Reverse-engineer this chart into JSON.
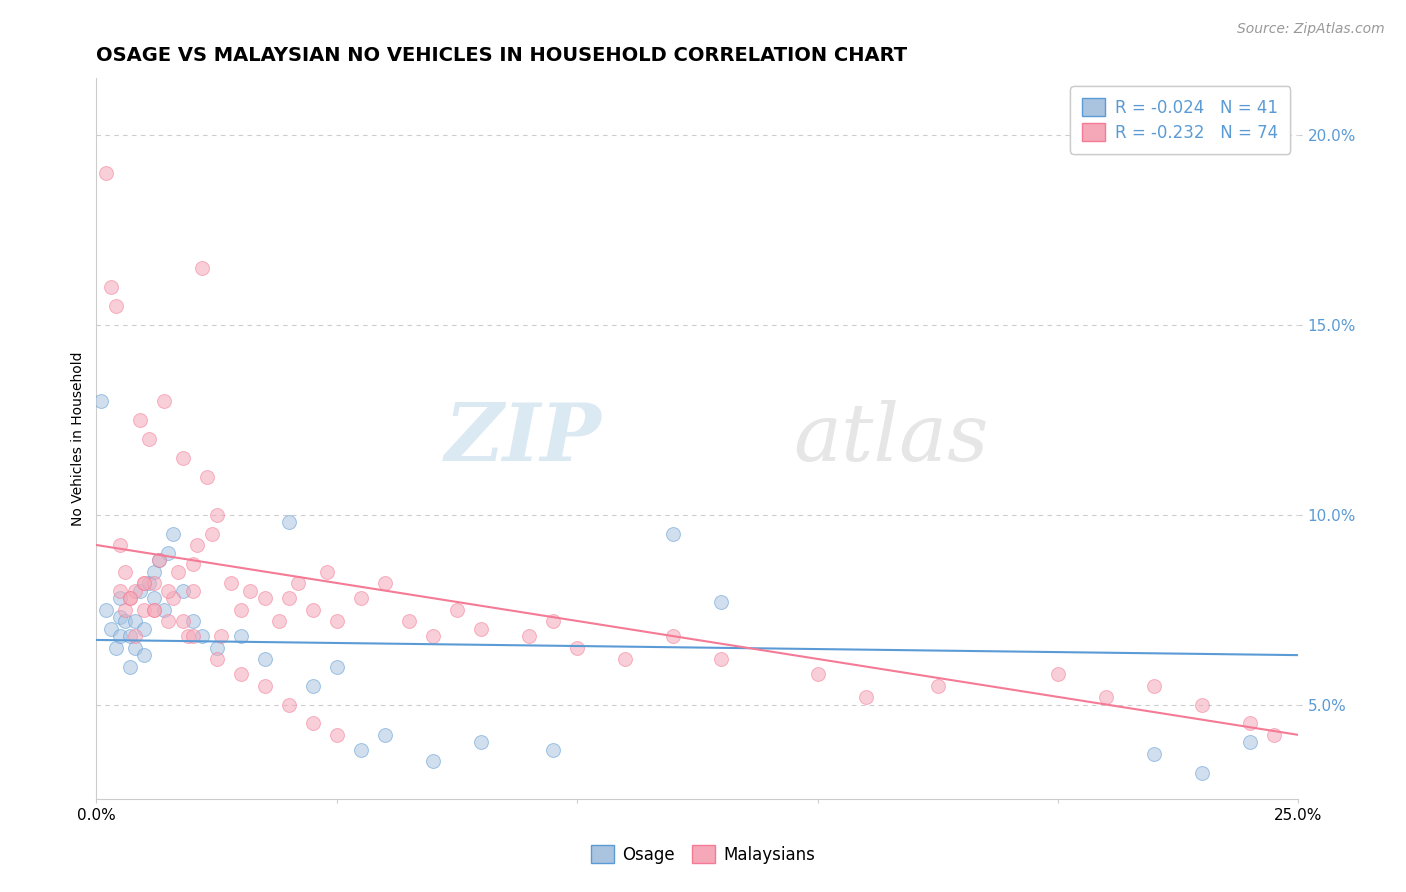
{
  "title": "OSAGE VS MALAYSIAN NO VEHICLES IN HOUSEHOLD CORRELATION CHART",
  "source": "Source: ZipAtlas.com",
  "ylabel": "No Vehicles in Household",
  "background_color": "#ffffff",
  "grid_color": "#cccccc",
  "osage_color": "#aac4e0",
  "malaysian_color": "#f4a8b8",
  "osage_line_color": "#5b9bd5",
  "malaysian_line_color": "#f47a95",
  "legend_r_osage": "R = -0.024",
  "legend_n_osage": "N = 41",
  "legend_r_malaysian": "R = -0.232",
  "legend_n_malaysian": "N = 74",
  "xlim": [
    0.0,
    0.25
  ],
  "ylim": [
    0.025,
    0.215
  ],
  "osage_trend": [
    0.0,
    0.25,
    0.067,
    0.063
  ],
  "malaysian_trend": [
    0.0,
    0.25,
    0.092,
    0.042
  ],
  "osage_x": [
    0.001,
    0.002,
    0.003,
    0.004,
    0.005,
    0.005,
    0.005,
    0.006,
    0.007,
    0.007,
    0.008,
    0.008,
    0.009,
    0.01,
    0.01,
    0.011,
    0.012,
    0.012,
    0.013,
    0.014,
    0.015,
    0.016,
    0.018,
    0.02,
    0.022,
    0.025,
    0.03,
    0.035,
    0.04,
    0.045,
    0.05,
    0.055,
    0.06,
    0.07,
    0.08,
    0.095,
    0.12,
    0.13,
    0.22,
    0.23,
    0.24
  ],
  "osage_y": [
    0.13,
    0.075,
    0.07,
    0.065,
    0.068,
    0.073,
    0.078,
    0.072,
    0.06,
    0.068,
    0.065,
    0.072,
    0.08,
    0.063,
    0.07,
    0.082,
    0.078,
    0.085,
    0.088,
    0.075,
    0.09,
    0.095,
    0.08,
    0.072,
    0.068,
    0.065,
    0.068,
    0.062,
    0.098,
    0.055,
    0.06,
    0.038,
    0.042,
    0.035,
    0.04,
    0.038,
    0.095,
    0.077,
    0.037,
    0.032,
    0.04
  ],
  "malaysian_x": [
    0.002,
    0.003,
    0.004,
    0.005,
    0.005,
    0.006,
    0.006,
    0.007,
    0.008,
    0.008,
    0.009,
    0.01,
    0.01,
    0.011,
    0.012,
    0.012,
    0.013,
    0.014,
    0.015,
    0.016,
    0.017,
    0.018,
    0.019,
    0.02,
    0.02,
    0.021,
    0.022,
    0.023,
    0.024,
    0.025,
    0.026,
    0.028,
    0.03,
    0.032,
    0.035,
    0.038,
    0.04,
    0.042,
    0.045,
    0.048,
    0.05,
    0.055,
    0.06,
    0.065,
    0.07,
    0.075,
    0.08,
    0.09,
    0.095,
    0.1,
    0.11,
    0.12,
    0.13,
    0.15,
    0.16,
    0.175,
    0.2,
    0.21,
    0.22,
    0.23,
    0.24,
    0.245,
    0.007,
    0.01,
    0.012,
    0.015,
    0.018,
    0.02,
    0.025,
    0.03,
    0.035,
    0.04,
    0.045,
    0.05
  ],
  "malaysian_y": [
    0.19,
    0.16,
    0.155,
    0.08,
    0.092,
    0.075,
    0.085,
    0.078,
    0.068,
    0.08,
    0.125,
    0.075,
    0.082,
    0.12,
    0.075,
    0.082,
    0.088,
    0.13,
    0.072,
    0.078,
    0.085,
    0.115,
    0.068,
    0.08,
    0.087,
    0.092,
    0.165,
    0.11,
    0.095,
    0.1,
    0.068,
    0.082,
    0.075,
    0.08,
    0.078,
    0.072,
    0.078,
    0.082,
    0.075,
    0.085,
    0.072,
    0.078,
    0.082,
    0.072,
    0.068,
    0.075,
    0.07,
    0.068,
    0.072,
    0.065,
    0.062,
    0.068,
    0.062,
    0.058,
    0.052,
    0.055,
    0.058,
    0.052,
    0.055,
    0.05,
    0.045,
    0.042,
    0.078,
    0.082,
    0.075,
    0.08,
    0.072,
    0.068,
    0.062,
    0.058,
    0.055,
    0.05,
    0.045,
    0.042
  ],
  "watermark_zip": "ZIP",
  "watermark_atlas": "atlas",
  "title_fontsize": 14,
  "axis_label_fontsize": 10,
  "tick_fontsize": 11,
  "source_fontsize": 10,
  "legend_fontsize": 12,
  "marker_size": 100,
  "marker_alpha": 0.55
}
